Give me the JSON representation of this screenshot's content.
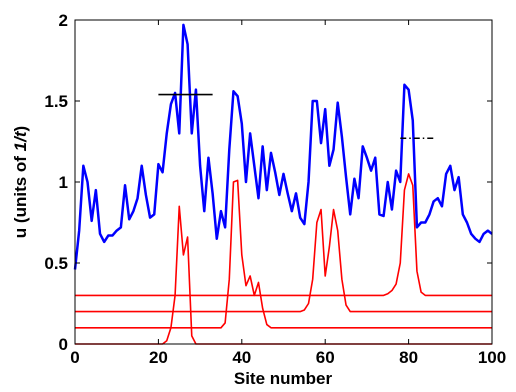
{
  "chart_data": {
    "type": "line",
    "xlabel": "Site number",
    "ylabel_parts": [
      "u (units of ",
      "1/t",
      ")"
    ],
    "xlim": [
      0,
      100
    ],
    "ylim": [
      0,
      2
    ],
    "xticks": [
      0,
      20,
      40,
      60,
      80,
      100
    ],
    "yticks": [
      0,
      0.5,
      1,
      1.5,
      2
    ],
    "series": [
      {
        "color": "#0000ff",
        "style": "solid",
        "x": [
          0,
          1,
          2,
          3,
          4,
          5,
          6,
          7,
          8,
          9,
          10,
          11,
          12,
          13,
          14,
          15,
          16,
          17,
          18,
          19,
          20,
          21,
          22,
          23,
          24,
          25,
          26,
          27,
          28,
          29,
          30,
          31,
          32,
          33,
          34,
          35,
          36,
          37,
          38,
          39,
          40,
          41,
          42,
          43,
          44,
          45,
          46,
          47,
          48,
          49,
          50,
          51,
          52,
          53,
          54,
          55,
          56,
          57,
          58,
          59,
          60,
          61,
          62,
          63,
          64,
          65,
          66,
          67,
          68,
          69,
          70,
          71,
          72,
          73,
          74,
          75,
          76,
          77,
          78,
          79,
          80,
          81,
          82,
          83,
          84,
          85,
          86,
          87,
          88,
          89,
          90,
          91,
          92,
          93,
          94,
          95,
          96,
          97,
          98,
          99,
          100
        ],
        "values": [
          0.46,
          0.7,
          1.1,
          1.0,
          0.76,
          0.95,
          0.68,
          0.63,
          0.67,
          0.67,
          0.7,
          0.72,
          0.98,
          0.77,
          0.82,
          0.9,
          1.1,
          0.92,
          0.78,
          0.8,
          1.11,
          1.06,
          1.3,
          1.48,
          1.55,
          1.3,
          1.97,
          1.85,
          1.3,
          1.57,
          1.1,
          0.82,
          1.15,
          0.93,
          0.65,
          0.82,
          0.72,
          1.2,
          1.56,
          1.53,
          1.36,
          1.0,
          1.3,
          1.1,
          0.9,
          1.22,
          0.95,
          1.18,
          1.06,
          0.92,
          1.05,
          0.93,
          0.82,
          0.93,
          0.78,
          0.74,
          1.0,
          1.5,
          1.5,
          1.24,
          1.45,
          1.1,
          1.2,
          1.49,
          1.28,
          1.03,
          0.8,
          1.02,
          0.9,
          1.22,
          1.15,
          1.07,
          1.15,
          0.8,
          0.79,
          1.0,
          0.83,
          1.07,
          1.0,
          1.6,
          1.57,
          1.38,
          0.72,
          0.75,
          0.75,
          0.8,
          0.88,
          0.9,
          0.85,
          1.05,
          1.1,
          0.95,
          1.03,
          0.8,
          0.75,
          0.68,
          0.65,
          0.63,
          0.68,
          0.7,
          0.68
        ]
      },
      {
        "color": "#ff0000",
        "style": "solid",
        "x": [
          0,
          21,
          22,
          23,
          24,
          25,
          26,
          27,
          28,
          29,
          100
        ],
        "values": [
          0,
          0,
          0.02,
          0.1,
          0.3,
          0.85,
          0.55,
          0.66,
          0.05,
          0,
          0
        ]
      },
      {
        "color": "#ff0000",
        "style": "solid",
        "x": [
          0,
          35,
          36,
          37,
          38,
          39,
          40,
          41,
          42,
          43,
          44,
          45,
          46,
          47,
          100
        ],
        "values": [
          0.1,
          0.1,
          0.13,
          0.4,
          1.0,
          1.01,
          0.55,
          0.36,
          0.42,
          0.3,
          0.38,
          0.22,
          0.12,
          0.1,
          0.1
        ]
      },
      {
        "color": "#ff0000",
        "style": "solid",
        "x": [
          0,
          54,
          55,
          56,
          57,
          58,
          59,
          60,
          61,
          62,
          63,
          64,
          65,
          66,
          100
        ],
        "values": [
          0.2,
          0.2,
          0.21,
          0.25,
          0.4,
          0.75,
          0.83,
          0.42,
          0.6,
          0.83,
          0.7,
          0.4,
          0.24,
          0.2,
          0.2
        ]
      },
      {
        "color": "#ff0000",
        "style": "solid",
        "x": [
          0,
          74,
          75,
          76,
          77,
          78,
          79,
          80,
          81,
          82,
          83,
          84,
          100
        ],
        "values": [
          0.3,
          0.3,
          0.31,
          0.33,
          0.37,
          0.5,
          0.95,
          1.05,
          0.98,
          0.45,
          0.32,
          0.3,
          0.3
        ]
      },
      {
        "color": "#000000",
        "style": "solid",
        "x": [
          20,
          33
        ],
        "values": [
          1.54,
          1.54
        ]
      },
      {
        "color": "#000000",
        "style": "dashdot",
        "x": [
          78,
          86
        ],
        "values": [
          1.27,
          1.27
        ]
      }
    ]
  }
}
